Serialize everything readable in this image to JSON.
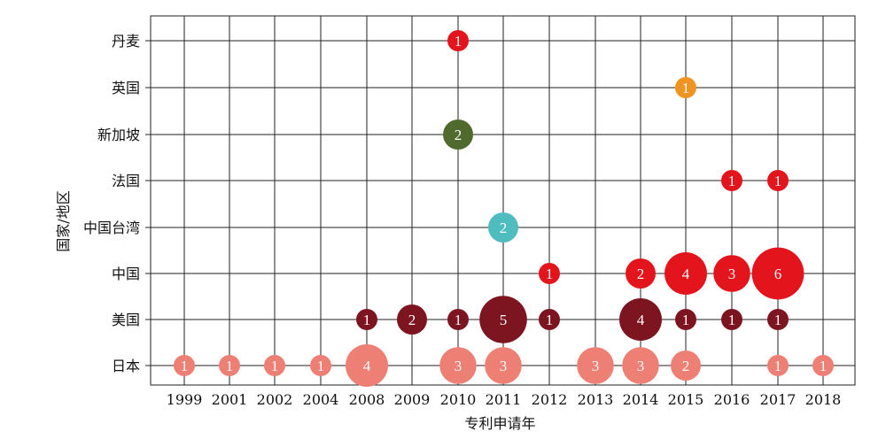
{
  "chart_data": {
    "type": "scatter",
    "subtype": "bubble",
    "title": "",
    "xlabel": "专利申请年",
    "ylabel": "国家/地区",
    "x_categories": [
      "1999",
      "2001",
      "2002",
      "2004",
      "2008",
      "2009",
      "2010",
      "2011",
      "2012",
      "2013",
      "2014",
      "2015",
      "2016",
      "2017",
      "2018"
    ],
    "y_categories": [
      "日本",
      "美国",
      "中国",
      "中国台湾",
      "法国",
      "新加坡",
      "英国",
      "丹麦"
    ],
    "grid": true,
    "legend": "none",
    "series": [
      {
        "category": "日本",
        "color": "#ee7f74",
        "points": [
          {
            "x": "1999",
            "value": 1
          },
          {
            "x": "2001",
            "value": 1
          },
          {
            "x": "2002",
            "value": 1
          },
          {
            "x": "2004",
            "value": 1
          },
          {
            "x": "2008",
            "value": 4
          },
          {
            "x": "2010",
            "value": 3
          },
          {
            "x": "2011",
            "value": 3
          },
          {
            "x": "2013",
            "value": 3
          },
          {
            "x": "2014",
            "value": 3
          },
          {
            "x": "2015",
            "value": 2
          },
          {
            "x": "2017",
            "value": 1
          },
          {
            "x": "2018",
            "value": 1
          }
        ]
      },
      {
        "category": "美国",
        "color": "#7d1520",
        "points": [
          {
            "x": "2008",
            "value": 1
          },
          {
            "x": "2009",
            "value": 2
          },
          {
            "x": "2010",
            "value": 1
          },
          {
            "x": "2011",
            "value": 5
          },
          {
            "x": "2012",
            "value": 1
          },
          {
            "x": "2014",
            "value": 4
          },
          {
            "x": "2015",
            "value": 1
          },
          {
            "x": "2016",
            "value": 1
          },
          {
            "x": "2017",
            "value": 1
          }
        ]
      },
      {
        "category": "中国",
        "color": "#e3141b",
        "points": [
          {
            "x": "2012",
            "value": 1
          },
          {
            "x": "2014",
            "value": 2
          },
          {
            "x": "2015",
            "value": 4
          },
          {
            "x": "2016",
            "value": 3
          },
          {
            "x": "2017",
            "value": 6
          }
        ]
      },
      {
        "category": "中国台湾",
        "color": "#4fbcc0",
        "points": [
          {
            "x": "2011",
            "value": 2
          }
        ]
      },
      {
        "category": "法国",
        "color": "#e3141b",
        "points": [
          {
            "x": "2016",
            "value": 1
          },
          {
            "x": "2017",
            "value": 1
          }
        ]
      },
      {
        "category": "新加坡",
        "color": "#4f6a2c",
        "points": [
          {
            "x": "2010",
            "value": 2
          }
        ]
      },
      {
        "category": "英国",
        "color": "#f09421",
        "points": [
          {
            "x": "2015",
            "value": 1
          }
        ]
      },
      {
        "category": "丹麦",
        "color": "#e3141b",
        "points": [
          {
            "x": "2010",
            "value": 1
          }
        ]
      }
    ]
  }
}
